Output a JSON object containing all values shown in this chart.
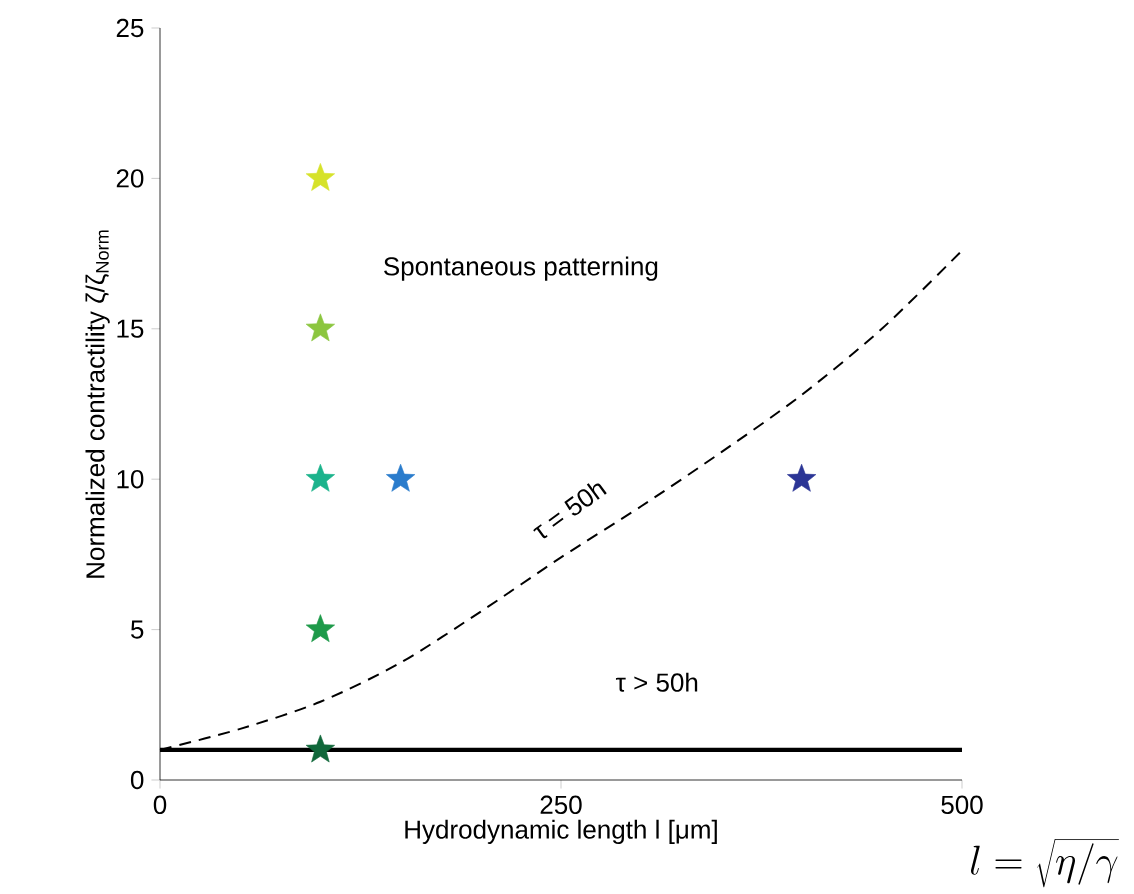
{
  "chart_data": {
    "type": "scatter",
    "xlabel": "Hydrodynamic length l [μm]",
    "ylabel": "Normalized contractility ζ/ζ$_{Norm}$",
    "xlim": [
      0,
      500
    ],
    "xticks": [
      0,
      250,
      500
    ],
    "ylim": [
      0,
      25
    ],
    "yticks": [
      0,
      5,
      10,
      15,
      20,
      25
    ],
    "series": [
      {
        "marker": "star",
        "x": [
          100,
          100,
          100,
          100,
          100,
          150,
          400
        ],
        "values": [
          20,
          15,
          10,
          5,
          1,
          10,
          10
        ],
        "colors": [
          "#d6e22a",
          "#8cc63f",
          "#1cb38c",
          "#1e9a4a",
          "#10683a",
          "#2a7ccc",
          "#2b3596"
        ]
      },
      {
        "type": "line",
        "line_style": "dashed",
        "color": "#000000",
        "x": [
          0,
          50,
          100,
          150,
          200,
          250,
          300,
          350,
          400,
          450,
          500
        ],
        "values": [
          1,
          1.7,
          2.6,
          3.9,
          5.6,
          7.4,
          9.1,
          10.9,
          12.8,
          15.0,
          17.6
        ]
      }
    ],
    "ref_lines": [
      {
        "axis": "y",
        "value": 1,
        "color": "#000000"
      }
    ],
    "annotations": [
      "Spontaneous patterning",
      "τ = 50h",
      "τ > 50h",
      "l = \\sqrt{\\eta/\\gamma}"
    ]
  }
}
